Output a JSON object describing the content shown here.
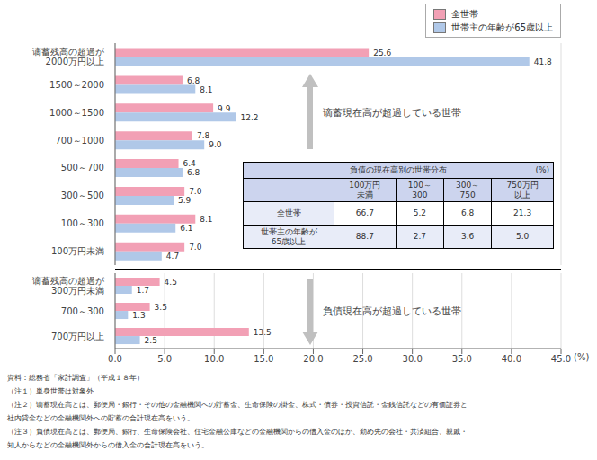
{
  "chart_data": [
    {
      "type": "bar",
      "orientation": "horizontal",
      "categories": [
        "谪蓄残高の超過が\n2000万円以上",
        "1500～2000",
        "1000～1500",
        "700～1000",
        "500～700",
        "300～500",
        "100～300",
        "100万円未満"
      ],
      "series": [
        {
          "name": "全世帯",
          "color": "#f2a0b5",
          "values": [
            25.6,
            6.8,
            9.9,
            7.8,
            6.4,
            7.0,
            8.1,
            7.0
          ],
          "value_labels": [
            "25.6",
            "6.8",
            "9.9",
            "7.8",
            "6.4",
            "7.0",
            "8.1",
            "7.0"
          ]
        },
        {
          "name": "世帯主の年齢が65歳以上",
          "color": "#b0c8e8",
          "values": [
            41.8,
            8.1,
            12.2,
            9.0,
            6.8,
            5.9,
            6.1,
            4.7
          ],
          "value_labels": [
            "41.8",
            "8.1",
            "12.2",
            "9.0",
            "6.8",
            "5.9",
            "6.1",
            "4.7"
          ]
        }
      ],
      "xlim": [
        0,
        45
      ],
      "xticks": [
        {
          "value": 0,
          "label": "0.0"
        },
        {
          "value": 5,
          "label": "5.0"
        },
        {
          "value": 10,
          "label": "10.0"
        },
        {
          "value": 15,
          "label": "15.0"
        },
        {
          "value": 20,
          "label": "20.0"
        },
        {
          "value": 25,
          "label": "25.0"
        },
        {
          "value": 30,
          "label": "30.0"
        },
        {
          "value": 35,
          "label": "35.0"
        },
        {
          "value": 40,
          "label": "40.0"
        },
        {
          "value": 45,
          "label": "45.0"
        }
      ],
      "tick_labels": "y",
      "grid": true,
      "data_labels": true,
      "legend": "upper right",
      "annotations": [
        "谪蓄現在高が超過している世帯"
      ],
      "table": {
        "title": "負債の現在高別の世帯分布",
        "unit": "(%)",
        "columns": [
          "100万円\n未満",
          "100～\n300",
          "300～\n750",
          "750万円\n以上"
        ],
        "rows": [
          "全世帯",
          "世帯主の年齢が\n65歳以上"
        ],
        "values": [
          [
            66.7,
            5.2,
            6.8,
            21.3
          ],
          [
            88.7,
            2.7,
            3.6,
            5.0
          ]
        ],
        "value_labels": [
          [
            "66.7",
            "5.2",
            "6.8",
            "21.3"
          ],
          [
            "88.7",
            "2.7",
            "3.6",
            "5.0"
          ]
        ]
      }
    },
    {
      "type": "bar",
      "orientation": "horizontal",
      "categories": [
        "谪蓄残高の超過が\n300万円未満",
        "700～300",
        "700万円以上"
      ],
      "series": [
        {
          "name": "全世帯",
          "color": "#f2a0b5",
          "values": [
            4.5,
            3.5,
            13.5
          ],
          "value_labels": [
            "4.5",
            "3.5",
            "13.5"
          ]
        },
        {
          "name": "世帯主の年齢が65歳以上",
          "color": "#b0c8e8",
          "values": [
            1.7,
            1.3,
            2.5
          ],
          "value_labels": [
            "1.7",
            "1.3",
            "2.5"
          ]
        }
      ],
      "xlim": [
        0,
        45
      ],
      "xticks": [
        {
          "value": 0,
          "label": "0.0"
        },
        {
          "value": 5,
          "label": "5.0"
        },
        {
          "value": 10,
          "label": "10.0"
        },
        {
          "value": 15,
          "label": "15.0"
        },
        {
          "value": 20,
          "label": "20.0"
        },
        {
          "value": 25,
          "label": "25.0"
        },
        {
          "value": 30,
          "label": "30.0"
        },
        {
          "value": 35,
          "label": "35.0"
        },
        {
          "value": 40,
          "label": "40.0"
        },
        {
          "value": 45,
          "label": "45.0"
        }
      ],
      "x_label": "(%)",
      "grid": true,
      "data_labels": true,
      "annotations": [
        "負債現在高が超過している世帯"
      ],
      "notes": [
        "資料：総務省「家計調査」（平成１８年）",
        "（注１）単身世帯は対象外",
        "（注２）谪蓄現在高とは、郵便局・銀行・その他の金融機関への貯蓄金、生命保険の掛金、株式・債券・投資信託・金銭信託などの有価証券と",
        "社内貸金などの金融機関外への貯蓄の合計現在高をいう。",
        "（注３）負債現在高とは、郵便局、銀行、生命保険会社、住宅金融公庫などの金融機関からの借入金のほか、勤め先の会社・共済組合、親戚・",
        "知人からなどの金融機関外からの借入金の合計現在高をいう。"
      ]
    }
  ]
}
